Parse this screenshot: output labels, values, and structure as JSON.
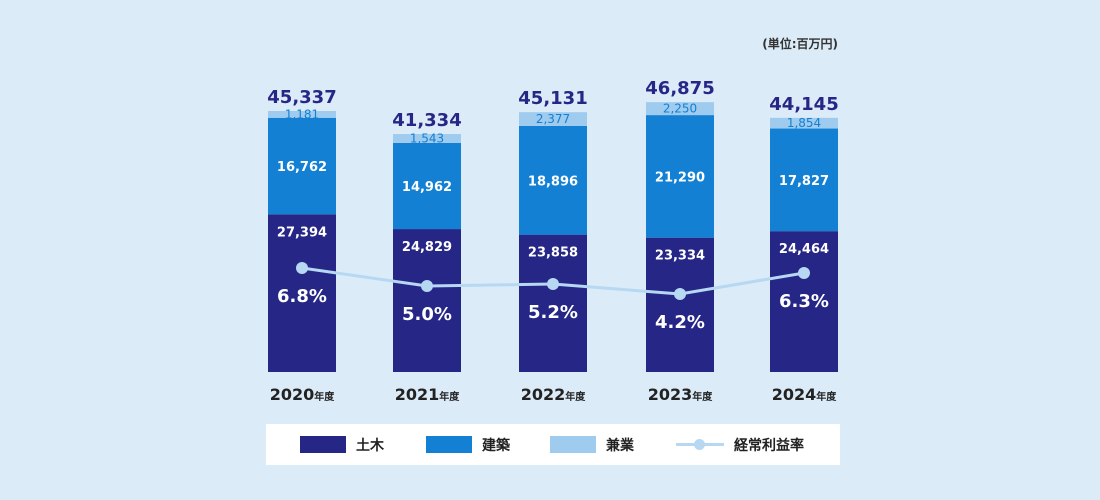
{
  "unit_label": "(単位:百万円)",
  "colors": {
    "doboku": "#262686",
    "kenchiku": "#1380d4",
    "kengyo": "#9fcbee",
    "ratio_line": "#b7d8f2",
    "ratio_dot": "#b7d8f2",
    "total_text": "#262686",
    "kengyo_text": "#1380d4",
    "background": "#dcebf8"
  },
  "chart_data": {
    "type": "bar",
    "stacked": true,
    "categories": [
      "2020年度",
      "2021年度",
      "2022年度",
      "2023年度",
      "2024年度"
    ],
    "category_years": [
      "2020",
      "2021",
      "2022",
      "2023",
      "2024"
    ],
    "category_suffix": "年度",
    "series": [
      {
        "name": "土木",
        "values": [
          27394,
          24829,
          23858,
          23334,
          24464
        ],
        "labels": [
          "27,394",
          "24,829",
          "23,858",
          "23,334",
          "24,464"
        ]
      },
      {
        "name": "建築",
        "values": [
          16762,
          14962,
          18896,
          21290,
          17827
        ],
        "labels": [
          "16,762",
          "14,962",
          "18,896",
          "21,290",
          "17,827"
        ]
      },
      {
        "name": "兼業",
        "values": [
          1181,
          1543,
          2377,
          2250,
          1854
        ],
        "labels": [
          "1,181",
          "1,543",
          "2,377",
          "2,250",
          "1,854"
        ]
      }
    ],
    "totals": [
      45337,
      41334,
      45131,
      46875,
      44145
    ],
    "total_labels": [
      "45,337",
      "41,334",
      "45,131",
      "46,875",
      "44,145"
    ],
    "line": {
      "name": "経常利益率",
      "values": [
        6.8,
        5.0,
        5.2,
        4.2,
        6.3
      ],
      "labels": [
        "6.8%",
        "5.0%",
        "5.2%",
        "4.2%",
        "6.3%"
      ]
    },
    "ylim": [
      0,
      60000
    ],
    "legend": [
      "土木",
      "建築",
      "兼業",
      "経常利益率"
    ],
    "legend_position": "bottom",
    "grid": false
  }
}
